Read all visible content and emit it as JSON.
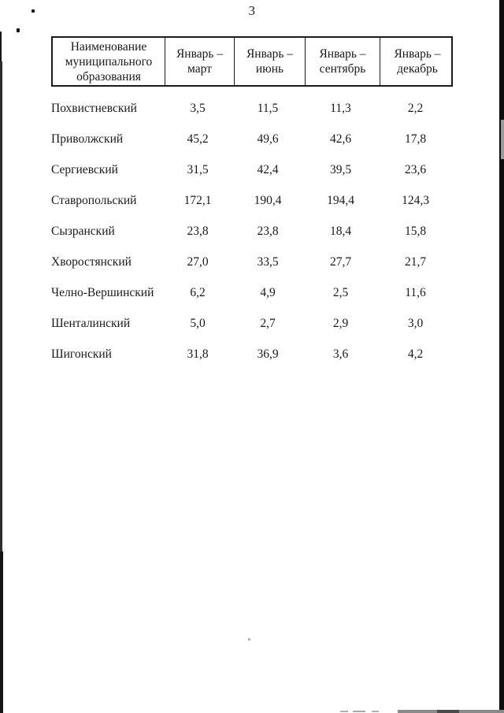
{
  "page": {
    "number": "3"
  },
  "table": {
    "header": {
      "name_column_lines": [
        "Наименование",
        "муниципального",
        "образования"
      ],
      "period_columns": [
        {
          "line1": "Январь –",
          "line2": "март"
        },
        {
          "line1": "Январь –",
          "line2": "июнь"
        },
        {
          "line1": "Январь –",
          "line2": "сентябрь"
        },
        {
          "line1": "Январь –",
          "line2": "декабрь"
        }
      ]
    },
    "rows": [
      {
        "name": "Похвистневский",
        "values": [
          "3,5",
          "11,5",
          "11,3",
          "2,2"
        ]
      },
      {
        "name": "Приволжский",
        "values": [
          "45,2",
          "49,6",
          "42,6",
          "17,8"
        ]
      },
      {
        "name": "Сергиевский",
        "values": [
          "31,5",
          "42,4",
          "39,5",
          "23,6"
        ]
      },
      {
        "name": "Ставропольский",
        "values": [
          "172,1",
          "190,4",
          "194,4",
          "124,3"
        ]
      },
      {
        "name": "Сызранский",
        "values": [
          "23,8",
          "23,8",
          "18,4",
          "15,8"
        ]
      },
      {
        "name": "Хворостянский",
        "values": [
          "27,0",
          "33,5",
          "27,7",
          "21,7"
        ]
      },
      {
        "name": "Челно-Вершинский",
        "values": [
          "6,2",
          "4,9",
          "2,5",
          "11,6"
        ]
      },
      {
        "name": "Шенталинский",
        "values": [
          "5,0",
          "2,7",
          "2,9",
          "3,0"
        ]
      },
      {
        "name": "Шигонский",
        "values": [
          "31,8",
          "36,9",
          "3,6",
          "4,2"
        ]
      }
    ]
  }
}
